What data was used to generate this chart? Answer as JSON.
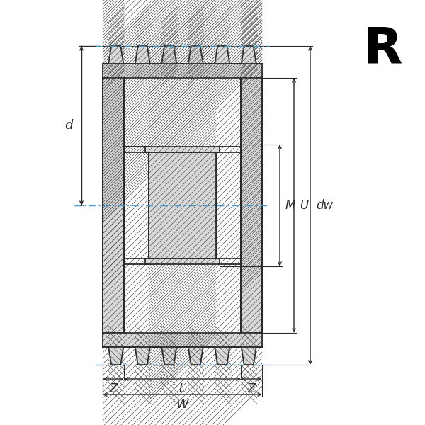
{
  "bg_color": "#ffffff",
  "line_color": "#2a2a2a",
  "hatch_color": "#555555",
  "dash_color": "#4499cc",
  "fig_width": 6.0,
  "fig_height": 6.0,
  "title_letter": "R",
  "labels": [
    "d",
    "M",
    "U",
    "dw",
    "Z",
    "L",
    "Z",
    "W"
  ],
  "draw_color": "#333333"
}
